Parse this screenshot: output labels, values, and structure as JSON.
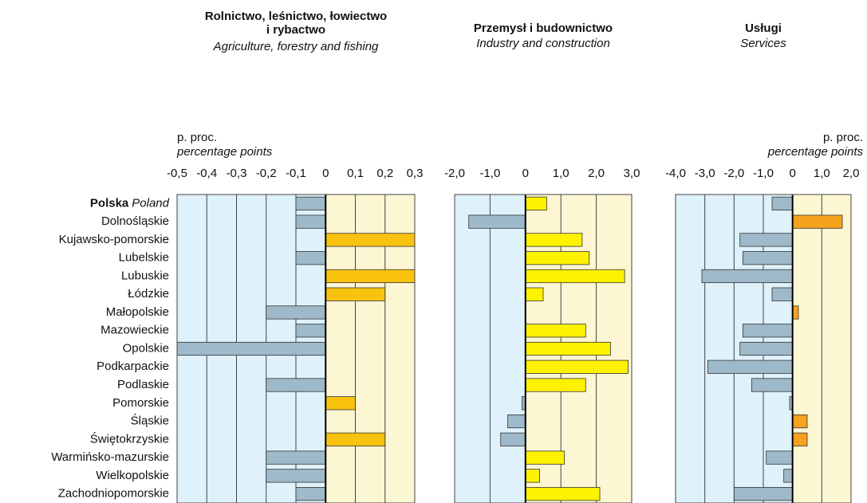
{
  "chart_data": [
    {
      "type": "horizontal_bar",
      "title": [
        "Rolnictwo, leśnictwo, łowiectwo",
        "i rybactwo"
      ],
      "subtitle": "Agriculture, forestry and fishing",
      "axis_label": "p. proc.",
      "axis_label_en": "percentage points",
      "categories": [
        "Polska",
        "Dolnośląskie",
        "Kujawsko-pomorskie",
        "Lubelskie",
        "Lubuskie",
        "Łódzkie",
        "Małopolskie",
        "Mazowieckie",
        "Opolskie",
        "Podkarpackie",
        "Podlaskie",
        "Pomorskie",
        "Śląskie",
        "Świętokrzyskie",
        "Warmińsko-mazurskie",
        "Wielkopolskie",
        "Zachodniopomorskie"
      ],
      "category_0_en": "Poland",
      "values": [
        -0.1,
        -0.1,
        0.3,
        -0.1,
        0.3,
        0.2,
        -0.2,
        -0.1,
        -0.5,
        0,
        -0.2,
        0.1,
        0,
        0.2,
        -0.2,
        -0.2,
        -0.1
      ],
      "xlim": [
        -0.5,
        0.3
      ],
      "xticks": [
        {
          "value": -0.5,
          "label": "-0,5"
        },
        {
          "value": -0.4,
          "label": "-0,4"
        },
        {
          "value": -0.3,
          "label": "-0,3"
        },
        {
          "value": -0.2,
          "label": "-0,2"
        },
        {
          "value": -0.1,
          "label": "-0,1"
        },
        0,
        {
          "value": 0.1,
          "label": "0,1"
        },
        {
          "value": 0.2,
          "label": "0,2"
        },
        {
          "value": 0.3,
          "label": "0,3"
        }
      ],
      "color_positive": "#f9c20f",
      "color_negative": "#9eb9c9",
      "grid": true
    },
    {
      "type": "horizontal_bar",
      "title": [
        "Przemysł i budownictwo"
      ],
      "subtitle": "Industry and construction",
      "values": [
        0.6,
        -1.6,
        1.6,
        1.8,
        2.8,
        0.5,
        0,
        1.7,
        2.4,
        2.9,
        1.7,
        -0.1,
        -0.5,
        -0.7,
        1.1,
        0.4,
        2.1
      ],
      "xlim": [
        -2.0,
        3.0
      ],
      "xticks": [
        {
          "value": -2.0,
          "label": "-2,0"
        },
        {
          "value": -1.0,
          "label": "-1,0"
        },
        0,
        {
          "value": 1.0,
          "label": "1,0"
        },
        {
          "value": 2.0,
          "label": "2,0"
        },
        {
          "value": 3.0,
          "label": "3,0"
        }
      ],
      "color_positive": "#fff200",
      "color_negative": "#9eb9c9",
      "grid": true
    },
    {
      "type": "horizontal_bar",
      "title": [
        "Usługi"
      ],
      "subtitle": "Services",
      "axis_label": "p. proc.",
      "axis_label_en": "percentage points",
      "values": [
        -0.7,
        1.7,
        -1.8,
        -1.7,
        -3.1,
        -0.7,
        0.2,
        -1.7,
        -1.8,
        -2.9,
        -1.4,
        -0.1,
        0.5,
        0.5,
        -0.9,
        -0.3,
        -2.0
      ],
      "xlim": [
        -4.0,
        2.0
      ],
      "xticks": [
        {
          "value": -4.0,
          "label": "-4,0"
        },
        {
          "value": -3.0,
          "label": "-3,0"
        },
        {
          "value": -2.0,
          "label": "-2,0"
        },
        {
          "value": -1.0,
          "label": "-1,0"
        },
        0,
        {
          "value": 1.0,
          "label": "1,0"
        },
        {
          "value": 2.0,
          "label": "2,0"
        }
      ],
      "color_positive": "#f6a21f",
      "color_negative": "#9eb9c9",
      "grid": true
    }
  ]
}
